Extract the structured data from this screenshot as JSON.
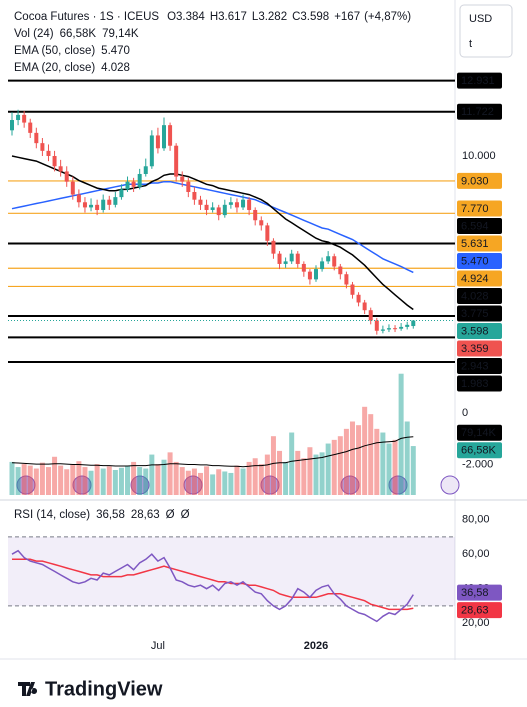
{
  "chart_data": {
    "type": "candlestick",
    "title": "Cocoa Futures · 1S · ICEUS",
    "header": [
      {
        "prefix": "O",
        "value": 3384,
        "label": "3.384"
      },
      {
        "prefix": "H",
        "value": 3617,
        "label": "3.617"
      },
      {
        "prefix": "L",
        "value": 3282,
        "label": "3.282"
      },
      {
        "prefix": "C",
        "value": 3598,
        "label": "3.598"
      }
    ],
    "change": {
      "value": 167,
      "label": "+167"
    },
    "change_pct": {
      "value": 4.87,
      "label": "(+4,87%)"
    },
    "currency": "USD",
    "unit": "t",
    "brand": "TradingView",
    "up_color": "#26a69a",
    "down_color": "#ef5350",
    "categories": [
      null,
      null,
      null,
      null,
      null,
      null,
      null,
      null,
      null,
      null,
      null,
      null,
      null,
      null,
      null,
      null,
      null,
      null,
      null,
      null,
      null,
      null,
      null,
      null,
      "Jul",
      null,
      null,
      null,
      null,
      null,
      null,
      null,
      null,
      null,
      null,
      null,
      null,
      null,
      null,
      null,
      null,
      null,
      null,
      null,
      null,
      null,
      null,
      null,
      null,
      null,
      "2026",
      null,
      null,
      null,
      null,
      null,
      null,
      null,
      null,
      null,
      null,
      null,
      null,
      null,
      null,
      null,
      null
    ],
    "open": [
      11000,
      11400,
      11600,
      11300,
      10900,
      10500,
      10200,
      10000,
      9600,
      9400,
      9000,
      8500,
      8200,
      8000,
      8100,
      7900,
      8300,
      8100,
      8400,
      8700,
      9000,
      8800,
      9300,
      9600,
      10800,
      10300,
      11200,
      10400,
      9200,
      9000,
      8600,
      8300,
      8100,
      7900,
      8000,
      7700,
      8100,
      8200,
      8000,
      8300,
      7900,
      7500,
      7300,
      6700,
      6200,
      5800,
      5900,
      6200,
      5800,
      5500,
      5200,
      5600,
      5900,
      6100,
      5700,
      5400,
      5000,
      4600,
      4300,
      4000,
      3600,
      3200,
      3250,
      3300,
      3280,
      3350,
      3384
    ],
    "high": [
      11700,
      11800,
      11750,
      11450,
      11100,
      10700,
      10450,
      10200,
      9850,
      9600,
      9200,
      8700,
      8400,
      8350,
      8300,
      8500,
      8450,
      8600,
      8900,
      9200,
      9150,
      9500,
      9900,
      11000,
      11100,
      11500,
      11300,
      10500,
      9400,
      9150,
      8800,
      8450,
      8300,
      8200,
      8100,
      8300,
      8400,
      8350,
      8500,
      8400,
      8000,
      7650,
      7400,
      6800,
      6300,
      6050,
      6350,
      6300,
      5900,
      5600,
      5750,
      6050,
      6300,
      6200,
      5800,
      5500,
      5100,
      4700,
      4400,
      4100,
      3700,
      3400,
      3450,
      3420,
      3500,
      3550,
      3617
    ],
    "low": [
      10800,
      11200,
      11100,
      10700,
      10300,
      10000,
      9800,
      9400,
      9200,
      8800,
      8300,
      8000,
      7800,
      7850,
      7700,
      7800,
      7900,
      8000,
      8300,
      8600,
      8600,
      8700,
      9200,
      9500,
      10100,
      10200,
      10200,
      9000,
      8800,
      8400,
      8100,
      7900,
      7700,
      7800,
      7500,
      7600,
      7950,
      7800,
      7900,
      7700,
      7300,
      7100,
      6500,
      6000,
      5600,
      5650,
      5800,
      5650,
      5300,
      5000,
      5100,
      5500,
      5800,
      5550,
      5200,
      4850,
      4450,
      4150,
      3850,
      3450,
      3050,
      3100,
      3150,
      3150,
      3200,
      3250,
      3282
    ],
    "close": [
      11400,
      11600,
      11300,
      10900,
      10500,
      10200,
      10000,
      9600,
      9400,
      9000,
      8500,
      8200,
      8000,
      8100,
      7900,
      8300,
      8100,
      8400,
      8700,
      9000,
      8800,
      9300,
      9600,
      10800,
      10300,
      11200,
      10400,
      9200,
      9000,
      8600,
      8300,
      8100,
      7900,
      8000,
      7700,
      8100,
      8200,
      8000,
      8300,
      7900,
      7500,
      7300,
      6700,
      6200,
      5800,
      5900,
      6200,
      5800,
      5500,
      5200,
      5600,
      5900,
      6100,
      5700,
      5400,
      5000,
      4600,
      4300,
      4000,
      3600,
      3200,
      3250,
      3300,
      3280,
      3350,
      3431,
      3598
    ],
    "ylim": [
      -3385,
      16070
    ],
    "yticks": [
      {
        "value": 10000,
        "label": "10.000"
      },
      {
        "value": 0,
        "label": "0"
      },
      {
        "value": -2000,
        "label": "-2.000"
      }
    ],
    "grid": false,
    "levels": [
      {
        "value": 12931,
        "label": "12.931",
        "color": "#000000",
        "line": true
      },
      {
        "value": 11722,
        "label": "11.722",
        "color": "#000000",
        "line": true
      },
      {
        "value": 9030,
        "label": "9.030",
        "color": "#f6a623",
        "line": true
      },
      {
        "value": 7770,
        "label": "7.770",
        "color": "#f6a623",
        "line": true
      },
      {
        "value": 6594,
        "label": "6.594",
        "color": "#000000",
        "line": true
      },
      {
        "value": 5631,
        "label": "5.631",
        "color": "#f6a623",
        "line": true
      },
      {
        "value": 4924,
        "label": "4.924",
        "color": "#f6a623",
        "line": true
      },
      {
        "value": 3775,
        "label": "3.775",
        "color": "#000000",
        "line": true
      },
      {
        "value": 3359,
        "label": "3.359",
        "color": "#ef5350",
        "line": false
      },
      {
        "value": 2943,
        "label": "2.943",
        "color": "#000000",
        "line": true
      },
      {
        "value": 1983,
        "label": "1.983",
        "color": "#000000",
        "line": true
      }
    ],
    "overlays": [
      {
        "name": "EMA (50, close)",
        "color": "#2962ff",
        "value": {
          "value": 5470,
          "label": "5.470"
        },
        "values": [
          7950,
          8000,
          8050,
          8100,
          8150,
          8200,
          8250,
          8300,
          8350,
          8400,
          8450,
          8500,
          8550,
          8600,
          8650,
          8700,
          8750,
          8800,
          8850,
          8900,
          8900,
          8900,
          8900,
          8950,
          8950,
          9000,
          9000,
          8950,
          8900,
          8850,
          8800,
          8750,
          8700,
          8650,
          8600,
          8550,
          8500,
          8450,
          8400,
          8350,
          8300,
          8200,
          8100,
          8000,
          7900,
          7800,
          7700,
          7600,
          7500,
          7400,
          7300,
          7200,
          7150,
          7050,
          6950,
          6850,
          6750,
          6600,
          6450,
          6300,
          6150,
          6000,
          5900,
          5800,
          5700,
          5580,
          5470
        ]
      },
      {
        "name": "EMA (20, close)",
        "color": "#000000",
        "value": {
          "value": 4028,
          "label": "4.028"
        },
        "values": [
          10000,
          9950,
          9900,
          9850,
          9800,
          9700,
          9600,
          9500,
          9400,
          9300,
          9200,
          9050,
          8950,
          8850,
          8750,
          8700,
          8650,
          8650,
          8700,
          8700,
          8750,
          8800,
          8850,
          9000,
          9100,
          9250,
          9300,
          9300,
          9250,
          9200,
          9100,
          9000,
          8900,
          8850,
          8750,
          8700,
          8650,
          8600,
          8550,
          8500,
          8400,
          8300,
          8150,
          7950,
          7750,
          7550,
          7400,
          7250,
          7100,
          6950,
          6800,
          6700,
          6650,
          6550,
          6450,
          6300,
          6150,
          5950,
          5750,
          5500,
          5250,
          5000,
          4800,
          4600,
          4400,
          4200,
          4028
        ]
      }
    ],
    "volume": {
      "name": "Vol (24)",
      "ylim": [
        0,
        200000
      ],
      "ma_color": "#000000",
      "value_label": {
        "value": 66580,
        "label": "66,58K"
      },
      "ma_label": {
        "value": 79140,
        "label": "79,14K"
      },
      "values": [
        45000,
        38000,
        42000,
        40000,
        36000,
        44000,
        38000,
        52000,
        40000,
        35000,
        41000,
        46000,
        38000,
        33000,
        42000,
        36000,
        39000,
        34000,
        37000,
        40000,
        45000,
        38000,
        36000,
        55000,
        42000,
        48000,
        58000,
        45000,
        38000,
        33000,
        36000,
        30000,
        39000,
        28000,
        35000,
        32000,
        30000,
        40000,
        36000,
        45000,
        50000,
        42000,
        55000,
        80000,
        60000,
        45000,
        85000,
        60000,
        50000,
        65000,
        55000,
        58000,
        70000,
        75000,
        80000,
        90000,
        100000,
        95000,
        120000,
        110000,
        90000,
        85000,
        70000,
        75000,
        165000,
        100000,
        66580
      ],
      "ma_values": [
        44000,
        43500,
        43000,
        42500,
        42000,
        42000,
        42000,
        42500,
        42500,
        42000,
        41500,
        41500,
        41000,
        40500,
        40500,
        40000,
        40000,
        39500,
        39500,
        39500,
        40000,
        40000,
        40000,
        41000,
        41000,
        41500,
        42500,
        42500,
        42000,
        41500,
        41500,
        41000,
        41000,
        40000,
        40000,
        39500,
        39000,
        39000,
        38500,
        39000,
        40000,
        40000,
        41000,
        43000,
        44000,
        44000,
        46000,
        47000,
        48000,
        49000,
        50000,
        51000,
        53000,
        55000,
        57000,
        59000,
        62000,
        64000,
        67000,
        69000,
        71000,
        72000,
        72500,
        73000,
        77000,
        78500,
        79140
      ]
    },
    "rsi": {
      "name": "RSI (14, close)",
      "color": "#7e57c2",
      "ma_color": "#f23645",
      "flags": [
        "Ø",
        "Ø"
      ],
      "ylim": [
        11.4,
        88.5
      ],
      "bands": [
        30,
        70
      ],
      "yticks": [
        {
          "value": 80,
          "label": "80,00"
        },
        {
          "value": 60,
          "label": "60,00"
        },
        {
          "value": 40,
          "label": "40,00"
        },
        {
          "value": 20,
          "label": "20,00"
        }
      ],
      "value_label": {
        "value": 36.58,
        "label": "36,58"
      },
      "ma_label": {
        "value": 28.63,
        "label": "28,63"
      },
      "values": [
        60,
        62,
        58,
        56,
        55,
        54,
        52,
        50,
        48,
        46,
        44,
        43,
        44,
        46,
        45,
        49,
        48,
        50,
        52,
        54,
        51,
        55,
        57,
        60,
        56,
        58,
        52,
        45,
        44,
        42,
        41,
        42,
        40,
        42,
        39,
        43,
        44,
        42,
        44,
        41,
        38,
        37,
        33,
        30,
        28,
        30,
        34,
        40,
        38,
        35,
        39,
        41,
        42,
        37,
        34,
        30,
        28,
        26,
        25,
        23,
        21,
        24,
        26,
        25,
        28,
        31,
        36.58
      ],
      "ma_values": [
        57,
        57,
        57,
        57,
        56,
        56,
        55,
        54,
        53,
        52,
        51,
        50,
        49,
        48,
        48,
        47,
        47,
        47,
        47,
        48,
        48,
        49,
        50,
        51,
        52,
        53,
        52,
        51,
        50,
        49,
        48,
        47,
        46,
        45,
        44,
        44,
        43,
        43,
        43,
        42,
        42,
        41,
        40,
        39,
        37,
        36,
        35,
        35,
        35,
        35,
        35,
        36,
        37,
        37,
        37,
        36,
        35,
        34,
        33,
        31,
        30,
        29,
        28,
        28,
        28,
        28,
        28.63
      ]
    }
  }
}
